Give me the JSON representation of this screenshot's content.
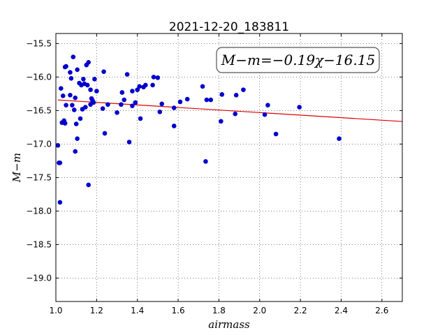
{
  "chart_data": {
    "type": "scatter",
    "title": "2021-12-20_183811",
    "xlabel": "airmass",
    "ylabel": "M−m",
    "xlim": [
      1.0,
      2.7
    ],
    "ylim": [
      -19.35,
      -15.35
    ],
    "y_inverted": true,
    "grid": true,
    "x_ticks": [
      1.0,
      1.2,
      1.4,
      1.6,
      1.8,
      2.0,
      2.2,
      2.4,
      2.6
    ],
    "x_tick_labels": [
      "1.0",
      "1.2",
      "1.4",
      "1.6",
      "1.8",
      "2.0",
      "2.2",
      "2.4",
      "2.6"
    ],
    "y_ticks": [
      -15.5,
      -16.0,
      -16.5,
      -17.0,
      -17.5,
      -18.0,
      -18.5,
      -19.0
    ],
    "y_tick_labels": [
      "−15.5",
      "−16.0",
      "−16.5",
      "−17.0",
      "−17.5",
      "−18.0",
      "−18.5",
      "−19.0"
    ],
    "annotation": "M−m=−0.19χ−16.15",
    "colors": {
      "points": "#0000cc",
      "fit_line": "#dd0000"
    },
    "fit": {
      "slope": -0.19,
      "intercept": -16.15,
      "x_range": [
        1.01,
        2.7
      ]
    },
    "points": [
      [
        1.01,
        -17.02
      ],
      [
        1.015,
        -17.28
      ],
      [
        1.02,
        -17.28
      ],
      [
        1.02,
        -17.87
      ],
      [
        1.025,
        -16.17
      ],
      [
        1.03,
        -16.68
      ],
      [
        1.035,
        -16.28
      ],
      [
        1.04,
        -16.65
      ],
      [
        1.045,
        -16.69
      ],
      [
        1.045,
        -15.85
      ],
      [
        1.05,
        -15.84
      ],
      [
        1.05,
        -16.42
      ],
      [
        1.07,
        -16.27
      ],
      [
        1.07,
        -15.93
      ],
      [
        1.075,
        -16.02
      ],
      [
        1.08,
        -16.42
      ],
      [
        1.085,
        -15.7
      ],
      [
        1.09,
        -16.49
      ],
      [
        1.095,
        -17.11
      ],
      [
        1.095,
        -16.31
      ],
      [
        1.1,
        -16.7
      ],
      [
        1.105,
        -15.89
      ],
      [
        1.105,
        -16.92
      ],
      [
        1.115,
        -16.09
      ],
      [
        1.12,
        -16.62
      ],
      [
        1.125,
        -16.12
      ],
      [
        1.13,
        -16.48
      ],
      [
        1.135,
        -16.03
      ],
      [
        1.14,
        -16.1
      ],
      [
        1.145,
        -16.45
      ],
      [
        1.15,
        -15.82
      ],
      [
        1.155,
        -16.12
      ],
      [
        1.16,
        -15.78
      ],
      [
        1.16,
        -17.61
      ],
      [
        1.17,
        -16.19
      ],
      [
        1.17,
        -16.41
      ],
      [
        1.175,
        -16.32
      ],
      [
        1.18,
        -16.35
      ],
      [
        1.185,
        -16.38
      ],
      [
        1.19,
        -16.03
      ],
      [
        1.2,
        -16.21
      ],
      [
        1.23,
        -16.47
      ],
      [
        1.235,
        -15.92
      ],
      [
        1.24,
        -16.84
      ],
      [
        1.255,
        -16.41
      ],
      [
        1.3,
        -16.53
      ],
      [
        1.32,
        -16.41
      ],
      [
        1.325,
        -16.23
      ],
      [
        1.335,
        -16.34
      ],
      [
        1.35,
        -15.96
      ],
      [
        1.36,
        -16.97
      ],
      [
        1.375,
        -16.43
      ],
      [
        1.375,
        -16.21
      ],
      [
        1.39,
        -16.38
      ],
      [
        1.4,
        -16.19
      ],
      [
        1.41,
        -16.14
      ],
      [
        1.415,
        -16.62
      ],
      [
        1.43,
        -16.15
      ],
      [
        1.44,
        -16.12
      ],
      [
        1.475,
        -16.12
      ],
      [
        1.48,
        -16.0
      ],
      [
        1.5,
        -16.01
      ],
      [
        1.51,
        -16.52
      ],
      [
        1.52,
        -16.4
      ],
      [
        1.58,
        -16.46
      ],
      [
        1.58,
        -16.73
      ],
      [
        1.61,
        -16.37
      ],
      [
        1.645,
        -16.33
      ],
      [
        1.72,
        -16.14
      ],
      [
        1.735,
        -17.26
      ],
      [
        1.74,
        -16.34
      ],
      [
        1.76,
        -16.34
      ],
      [
        1.81,
        -16.66
      ],
      [
        1.815,
        -16.26
      ],
      [
        1.88,
        -16.55
      ],
      [
        1.885,
        -16.27
      ],
      [
        1.92,
        -16.19
      ],
      [
        2.025,
        -16.56
      ],
      [
        2.04,
        -16.42
      ],
      [
        2.08,
        -16.85
      ],
      [
        2.195,
        -16.45
      ],
      [
        2.39,
        -16.92
      ]
    ]
  }
}
